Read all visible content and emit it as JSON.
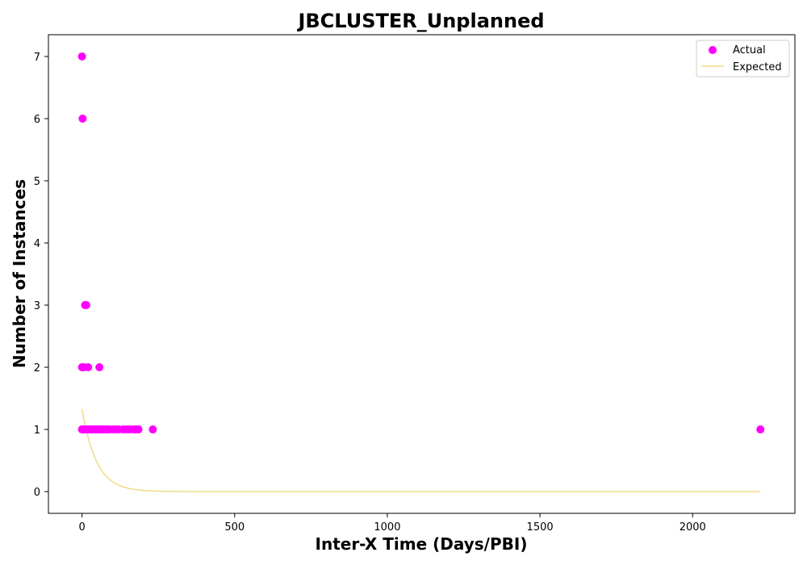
{
  "chart_data": {
    "type": "scatter",
    "title": "JBCLUSTER_Unplanned",
    "xlabel": "Inter-X Time (Days/PBI)",
    "ylabel": "Number of Instances",
    "xlim": [
      -110,
      2335
    ],
    "ylim": [
      -0.35,
      7.35
    ],
    "xticks": [
      0,
      500,
      1000,
      1500,
      2000
    ],
    "yticks": [
      0,
      1,
      2,
      3,
      4,
      5,
      6,
      7
    ],
    "grid": false,
    "legend_position": "top-right",
    "colors": {
      "actual": "#ff00ff",
      "expected": "#f0dc82"
    },
    "series": [
      {
        "name": "Actual",
        "kind": "scatter",
        "points": [
          [
            0,
            7
          ],
          [
            2,
            6
          ],
          [
            10,
            3
          ],
          [
            14,
            3
          ],
          [
            0,
            2
          ],
          [
            6,
            2
          ],
          [
            20,
            2
          ],
          [
            57,
            2
          ],
          [
            0,
            1
          ],
          [
            4,
            1
          ],
          [
            9,
            1
          ],
          [
            14,
            1
          ],
          [
            19,
            1
          ],
          [
            25,
            1
          ],
          [
            31,
            1
          ],
          [
            37,
            1
          ],
          [
            44,
            1
          ],
          [
            50,
            1
          ],
          [
            57,
            1
          ],
          [
            64,
            1
          ],
          [
            72,
            1
          ],
          [
            80,
            1
          ],
          [
            88,
            1
          ],
          [
            101,
            1
          ],
          [
            110,
            1
          ],
          [
            120,
            1
          ],
          [
            135,
            1
          ],
          [
            145,
            1
          ],
          [
            155,
            1
          ],
          [
            168,
            1
          ],
          [
            176,
            1
          ],
          [
            185,
            1
          ],
          [
            232,
            1
          ],
          [
            2222,
            1
          ]
        ]
      },
      {
        "name": "Expected",
        "kind": "line",
        "model": "exponential",
        "amplitude": 1.33,
        "rate_per_day": 0.0212,
        "x_range": [
          0,
          2222
        ]
      }
    ]
  }
}
